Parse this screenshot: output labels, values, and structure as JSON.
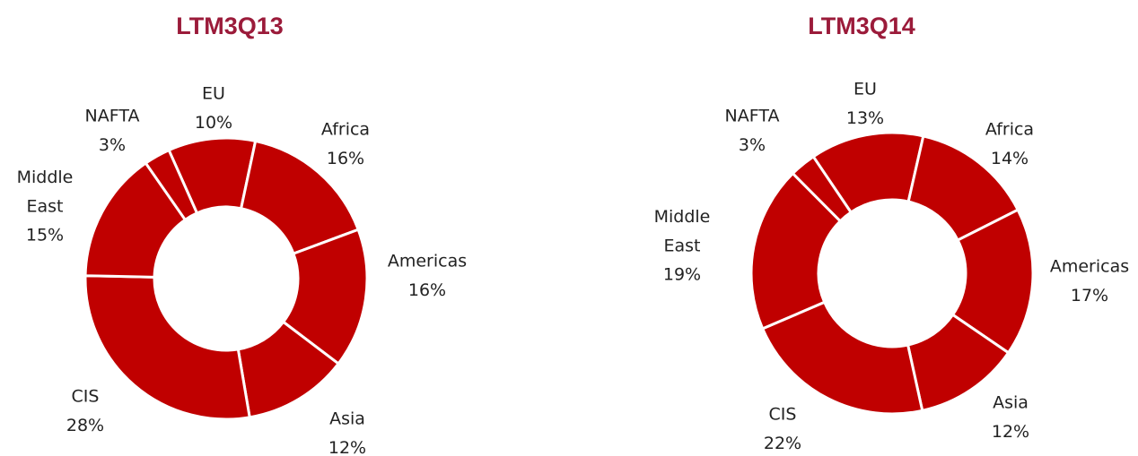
{
  "chart_data": [
    {
      "type": "donut",
      "title": "LTM3Q13",
      "categories": [
        "EU",
        "Africa",
        "Americas",
        "Asia",
        "CIS",
        "Middle East",
        "NAFTA"
      ],
      "values": [
        10,
        16,
        16,
        12,
        28,
        15,
        3
      ],
      "value_labels": [
        "10%",
        "16%",
        "16%",
        "12%",
        "28%",
        "15%",
        "3%"
      ],
      "color": "#c00000"
    },
    {
      "type": "donut",
      "title": "LTM3Q14",
      "categories": [
        "EU",
        "Africa",
        "Americas",
        "Asia",
        "CIS",
        "Middle East",
        "NAFTA"
      ],
      "values": [
        13,
        14,
        17,
        12,
        22,
        19,
        3
      ],
      "value_labels": [
        "13%",
        "14%",
        "17%",
        "12%",
        "22%",
        "19%",
        "3%"
      ],
      "color": "#c00000"
    }
  ]
}
